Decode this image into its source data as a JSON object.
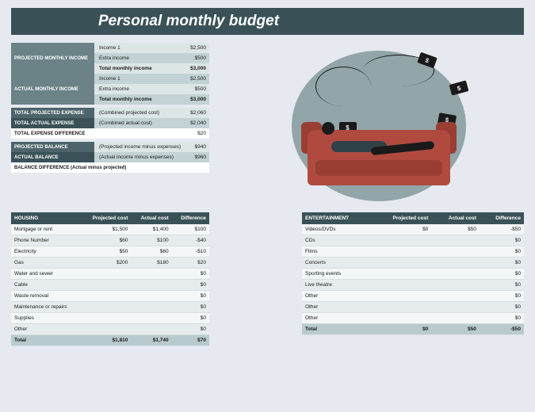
{
  "title": "Personal monthly budget",
  "income": {
    "projected": {
      "label": "PROJECTED MONTHLY INCOME",
      "rows": [
        {
          "desc": "Income 1",
          "val": "$2,500"
        },
        {
          "desc": "Extra income",
          "val": "$500"
        },
        {
          "desc": "Total monthly income",
          "val": "$3,000",
          "bold": true
        }
      ]
    },
    "actual": {
      "label": "ACTUAL MONTHLY INCOME",
      "rows": [
        {
          "desc": "Income 1",
          "val": "$2,500"
        },
        {
          "desc": "Extra income",
          "val": "$500"
        },
        {
          "desc": "Total monthly income",
          "val": "$3,000",
          "bold": true
        }
      ]
    }
  },
  "summary": [
    {
      "label": "TOTAL PROJECTED EXPENSE",
      "desc": "(Combined projected cost)",
      "val": "$2,060",
      "tone": "darker"
    },
    {
      "label": "TOTAL ACTUAL EXPENSE",
      "desc": "(Combined actual cost)",
      "val": "$2,040",
      "tone": "darkest"
    },
    {
      "label": "TOTAL EXPENSE DIFFERENCE",
      "desc": "",
      "val": "$20",
      "tone": "white",
      "boldLabel": true
    }
  ],
  "balance": [
    {
      "label": "PROJECTED BALANCE",
      "desc": "(Projected income minus expenses)",
      "val": "$940",
      "tone": "darker"
    },
    {
      "label": "ACTUAL BALANCE",
      "desc": "(Actual income minus expenses)",
      "val": "$960",
      "tone": "darkest"
    },
    {
      "label": "BALANCE DIFFERENCE (Actual minus projected)",
      "desc": "",
      "val": "",
      "tone": "white",
      "boldLabel": true,
      "span": true
    }
  ],
  "housing": {
    "title": "HOUSING",
    "cols": [
      "Projected cost",
      "Actual cost",
      "Difference"
    ],
    "rows": [
      {
        "n": "Mortgage or rent",
        "p": "$1,500",
        "a": "$1,400",
        "d": "$100"
      },
      {
        "n": "Phone Number",
        "p": "$60",
        "a": "$100",
        "d": "-$40"
      },
      {
        "n": "Electricity",
        "p": "$50",
        "a": "$60",
        "d": "-$10"
      },
      {
        "n": "Gas",
        "p": "$200",
        "a": "$180",
        "d": "$20"
      },
      {
        "n": "Water and sewer",
        "p": "",
        "a": "",
        "d": "$0"
      },
      {
        "n": "Cable",
        "p": "",
        "a": "",
        "d": "$0"
      },
      {
        "n": "Waste removal",
        "p": "",
        "a": "",
        "d": "$0"
      },
      {
        "n": "Maintenance or repairs",
        "p": "",
        "a": "",
        "d": "$0"
      },
      {
        "n": "Supplies",
        "p": "",
        "a": "",
        "d": "$0"
      },
      {
        "n": "Other",
        "p": "",
        "a": "",
        "d": "$0"
      }
    ],
    "total": {
      "n": "Total",
      "p": "$1,810",
      "a": "$1,740",
      "d": "$70"
    }
  },
  "entertainment": {
    "title": "ENTERTAINMENT",
    "cols": [
      "Projected cost",
      "Actual cost",
      "Difference"
    ],
    "rows": [
      {
        "n": "Videos/DVDs",
        "p": "$0",
        "a": "$50",
        "d": "-$50"
      },
      {
        "n": "CDs",
        "p": "",
        "a": "",
        "d": "$0"
      },
      {
        "n": "Films",
        "p": "",
        "a": "",
        "d": "$0"
      },
      {
        "n": "Concerts",
        "p": "",
        "a": "",
        "d": "$0"
      },
      {
        "n": "Sporting events",
        "p": "",
        "a": "",
        "d": "$0"
      },
      {
        "n": "Live theatre",
        "p": "",
        "a": "",
        "d": "$0"
      },
      {
        "n": "Other",
        "p": "",
        "a": "",
        "d": "$0"
      },
      {
        "n": "Other",
        "p": "",
        "a": "",
        "d": "$0"
      },
      {
        "n": "Other",
        "p": "",
        "a": "",
        "d": "$0"
      }
    ],
    "total": {
      "n": "Total",
      "p": "$0",
      "a": "$50",
      "d": "-$50"
    }
  }
}
